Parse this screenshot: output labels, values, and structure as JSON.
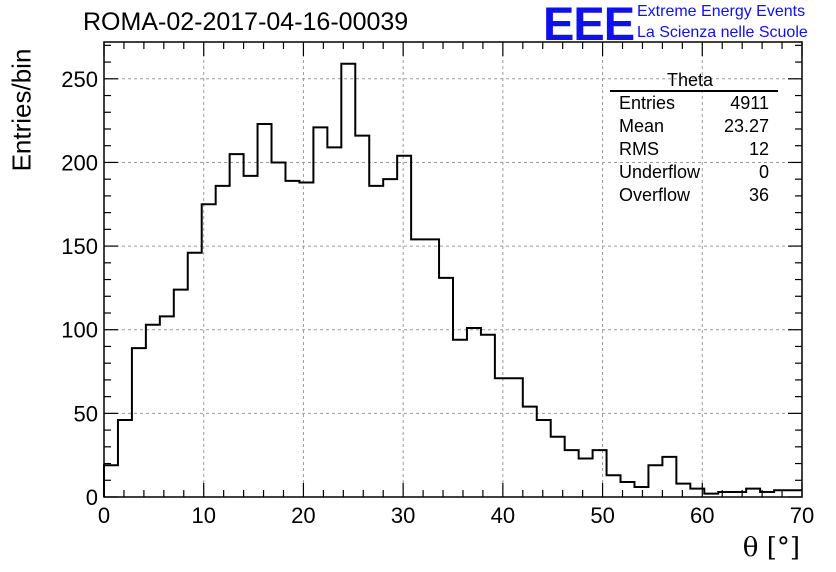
{
  "header": {
    "title": "ROMA-02-2017-04-16-00039",
    "logo_text": "EEE",
    "logo_line1": "Extreme Energy Events",
    "logo_line2": "La Scienza nelle Scuole"
  },
  "stats": {
    "title": "Theta",
    "rows": [
      {
        "label": "Entries",
        "value": "4911"
      },
      {
        "label": "Mean",
        "value": "23.27"
      },
      {
        "label": "RMS",
        "value": "12"
      },
      {
        "label": "Underflow",
        "value": "0"
      },
      {
        "label": "Overflow",
        "value": "36"
      }
    ]
  },
  "colors": {
    "logo": "#1010e8",
    "line": "#000000",
    "grid": "#9a9a9a"
  },
  "chart_data": {
    "type": "bar",
    "style": "step-histogram",
    "xlabel": "θ [°]",
    "ylabel": "Entries/bin",
    "xlim": [
      0,
      70
    ],
    "ylim": [
      0,
      272
    ],
    "grid": true,
    "legend": "stats box top-right",
    "bin_edges_start": 0,
    "bin_width": 1.4,
    "values": [
      19,
      46,
      89,
      103,
      108,
      124,
      146,
      175,
      186,
      205,
      192,
      223,
      200,
      189,
      188,
      221,
      209,
      259,
      216,
      186,
      190,
      204,
      154,
      154,
      131,
      94,
      101,
      97,
      71,
      71,
      54,
      46,
      36,
      28,
      23,
      28,
      13,
      9,
      6,
      19,
      24,
      8,
      5,
      2,
      3,
      3,
      5,
      3,
      4,
      4
    ],
    "x_ticks": [
      "0",
      "10",
      "20",
      "30",
      "40",
      "50",
      "60",
      "70"
    ],
    "y_ticks": [
      "0",
      "50",
      "100",
      "150",
      "200",
      "250"
    ]
  }
}
